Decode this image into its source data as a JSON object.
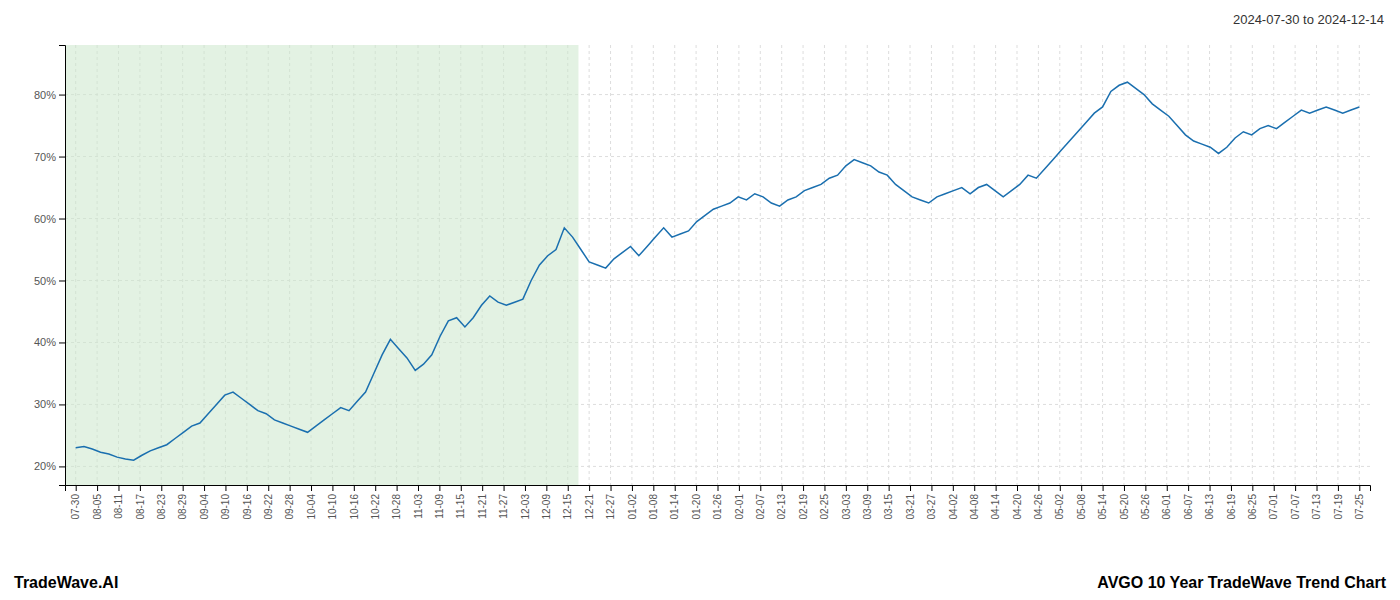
{
  "chart_data": {
    "type": "line",
    "title": "AVGO 10 Year TradeWave Trend Chart",
    "subtitle": "2024-07-30 to 2024-12-14",
    "annotations": [
      "TradeWave.AI"
    ],
    "x": [
      0,
      0.3871,
      0.7742,
      1.1613,
      1.5484,
      1.9355,
      2.3226,
      2.7097,
      3.0968,
      3.4839,
      3.871,
      4.2581,
      4.6452,
      5.0323,
      5.4194,
      5.8065,
      6.1935,
      6.5806,
      6.9677,
      7.3548,
      7.7419,
      8.129,
      8.5161,
      8.9032,
      9.2903,
      9.6774,
      10.0645,
      10.4516,
      10.8387,
      11.2258,
      11.6129,
      12,
      12.3871,
      12.7742,
      13.1613,
      13.5484,
      13.9355,
      14.3226,
      14.7097,
      15.0968,
      15.4839,
      15.871,
      16.2581,
      16.6452,
      17.0323,
      17.4194,
      17.8065,
      18.1935,
      18.5806,
      18.9677,
      19.3548,
      19.7419,
      20.129,
      20.5161,
      20.9032,
      21.2903,
      21.6774,
      22.0645,
      22.4516,
      22.8387,
      23.2258,
      23.6129,
      24,
      24.3871,
      24.7742,
      25.1613,
      25.5484,
      25.9355,
      26.3226,
      26.7097,
      27.0968,
      27.4839,
      27.871,
      28.2581,
      28.6452,
      29.0323,
      29.4194,
      29.8065,
      30.1935,
      30.5806,
      30.9677,
      31.3548,
      31.7419,
      32.129,
      32.5161,
      32.9032,
      33.2903,
      33.6774,
      34.0645,
      34.4516,
      34.8387,
      35.2258,
      35.6129,
      36,
      36.3871,
      36.7742,
      37.1613,
      37.5484,
      37.9355,
      38.3226,
      38.7097,
      39.0968,
      39.4839,
      39.871,
      40.2581,
      40.6452,
      41.0323,
      41.4194,
      41.8065,
      42.1935,
      42.5806,
      42.9677,
      43.3548,
      43.7419,
      44.129,
      44.5161,
      44.9032,
      45.2903,
      45.6774,
      46.0645,
      46.4516,
      46.8387,
      47.2258,
      47.6129,
      48,
      48.3871,
      48.7742,
      49.1613,
      49.5484,
      49.9355,
      50.3226,
      50.7097,
      51.0968,
      51.4839,
      51.871,
      52.2581,
      52.6452,
      53.0323,
      53.4194,
      53.8065,
      54.1935,
      54.5806,
      54.9677,
      55.3548,
      55.7419,
      56.129,
      56.5161,
      56.9032,
      57.2903,
      57.6774,
      58.0645,
      58.4516,
      58.8387,
      59.2258,
      59.6129,
      60
    ],
    "series": [
      {
        "color": "#1a6faf",
        "values": [
          23.0,
          23.2,
          22.8,
          22.3,
          22.0,
          21.5,
          21.2,
          21.0,
          21.8,
          22.5,
          23.0,
          23.5,
          24.5,
          25.5,
          26.5,
          27.0,
          28.5,
          30.0,
          31.5,
          32.0,
          31.0,
          30.0,
          29.0,
          28.5,
          27.5,
          27.0,
          26.5,
          26.0,
          25.5,
          26.5,
          27.5,
          28.5,
          29.5,
          29.0,
          30.5,
          32.0,
          35.0,
          38.0,
          40.5,
          39.0,
          37.5,
          35.5,
          36.5,
          38.0,
          41.0,
          43.5,
          44.0,
          42.5,
          44.0,
          46.0,
          47.5,
          46.5,
          46.0,
          46.5,
          47.0,
          50.0,
          52.5,
          54.0,
          55.0,
          58.5,
          57.0,
          55.0,
          53.0,
          52.5,
          52.0,
          53.5,
          54.5,
          55.5,
          54.0,
          55.5,
          57.0,
          58.5,
          57.0,
          57.5,
          58.0,
          59.5,
          60.5,
          61.5,
          62.0,
          62.5,
          63.5,
          63.0,
          64.0,
          63.5,
          62.5,
          62.0,
          63.0,
          63.5,
          64.5,
          65.0,
          65.5,
          66.5,
          67.0,
          68.5,
          69.5,
          69.0,
          68.5,
          67.5,
          67.0,
          65.5,
          64.5,
          63.5,
          63.0,
          62.5,
          63.5,
          64.0,
          64.5,
          65.0,
          64.0,
          65.0,
          65.5,
          64.5,
          63.5,
          64.5,
          65.5,
          67.0,
          66.5,
          68.0,
          69.5,
          71.0,
          72.5,
          74.0,
          75.5,
          77.0,
          78.0,
          80.5,
          81.5,
          82.0,
          81.0,
          80.0,
          78.5,
          77.5,
          76.5,
          75.0,
          73.5,
          72.5,
          72.0,
          71.5,
          70.5,
          71.5,
          73.0,
          74.0,
          73.5,
          74.5,
          75.0,
          74.5,
          75.5,
          76.5,
          77.5,
          77.0,
          77.5,
          78.0,
          77.5,
          77.0,
          77.5,
          78.0
        ]
      }
    ],
    "spans": [
      {
        "x0": -0.5,
        "x1": 23.5,
        "color": "#cce8cc"
      }
    ],
    "xlim": [
      -0.5,
      60.5
    ],
    "xticks": [
      {
        "value": 0,
        "label": "07-30"
      },
      {
        "value": 1,
        "label": "08-05"
      },
      {
        "value": 2,
        "label": "08-11"
      },
      {
        "value": 3,
        "label": "08-17"
      },
      {
        "value": 4,
        "label": "08-23"
      },
      {
        "value": 5,
        "label": "08-29"
      },
      {
        "value": 6,
        "label": "09-04"
      },
      {
        "value": 7,
        "label": "09-10"
      },
      {
        "value": 8,
        "label": "09-16"
      },
      {
        "value": 9,
        "label": "09-22"
      },
      {
        "value": 10,
        "label": "09-28"
      },
      {
        "value": 11,
        "label": "10-04"
      },
      {
        "value": 12,
        "label": "10-10"
      },
      {
        "value": 13,
        "label": "10-16"
      },
      {
        "value": 14,
        "label": "10-22"
      },
      {
        "value": 15,
        "label": "10-28"
      },
      {
        "value": 16,
        "label": "11-03"
      },
      {
        "value": 17,
        "label": "11-09"
      },
      {
        "value": 18,
        "label": "11-15"
      },
      {
        "value": 19,
        "label": "11-21"
      },
      {
        "value": 20,
        "label": "11-27"
      },
      {
        "value": 21,
        "label": "12-03"
      },
      {
        "value": 22,
        "label": "12-09"
      },
      {
        "value": 23,
        "label": "12-15"
      },
      {
        "value": 24,
        "label": "12-21"
      },
      {
        "value": 25,
        "label": "12-27"
      },
      {
        "value": 26,
        "label": "01-02"
      },
      {
        "value": 27,
        "label": "01-08"
      },
      {
        "value": 28,
        "label": "01-14"
      },
      {
        "value": 29,
        "label": "01-20"
      },
      {
        "value": 30,
        "label": "01-26"
      },
      {
        "value": 31,
        "label": "02-01"
      },
      {
        "value": 32,
        "label": "02-07"
      },
      {
        "value": 33,
        "label": "02-13"
      },
      {
        "value": 34,
        "label": "02-19"
      },
      {
        "value": 35,
        "label": "02-25"
      },
      {
        "value": 36,
        "label": "03-03"
      },
      {
        "value": 37,
        "label": "03-09"
      },
      {
        "value": 38,
        "label": "03-15"
      },
      {
        "value": 39,
        "label": "03-21"
      },
      {
        "value": 40,
        "label": "03-27"
      },
      {
        "value": 41,
        "label": "04-02"
      },
      {
        "value": 42,
        "label": "04-08"
      },
      {
        "value": 43,
        "label": "04-14"
      },
      {
        "value": 44,
        "label": "04-20"
      },
      {
        "value": 45,
        "label": "04-26"
      },
      {
        "value": 46,
        "label": "05-02"
      },
      {
        "value": 47,
        "label": "05-08"
      },
      {
        "value": 48,
        "label": "05-14"
      },
      {
        "value": 49,
        "label": "05-20"
      },
      {
        "value": 50,
        "label": "05-26"
      },
      {
        "value": 51,
        "label": "06-01"
      },
      {
        "value": 52,
        "label": "06-07"
      },
      {
        "value": 53,
        "label": "06-13"
      },
      {
        "value": 54,
        "label": "06-19"
      },
      {
        "value": 55,
        "label": "06-25"
      },
      {
        "value": 56,
        "label": "07-01"
      },
      {
        "value": 57,
        "label": "07-07"
      },
      {
        "value": 58,
        "label": "07-13"
      },
      {
        "value": 59,
        "label": "07-19"
      },
      {
        "value": 60,
        "label": "07-25"
      }
    ],
    "ylim": [
      17,
      88
    ],
    "yticks": [
      {
        "value": 20,
        "label": "20%"
      },
      {
        "value": 30,
        "label": "30%"
      },
      {
        "value": 40,
        "label": "40%"
      },
      {
        "value": 50,
        "label": "50%"
      },
      {
        "value": 60,
        "label": "60%"
      },
      {
        "value": 70,
        "label": "70%"
      },
      {
        "value": 80,
        "label": "80%"
      }
    ],
    "grid": true
  }
}
